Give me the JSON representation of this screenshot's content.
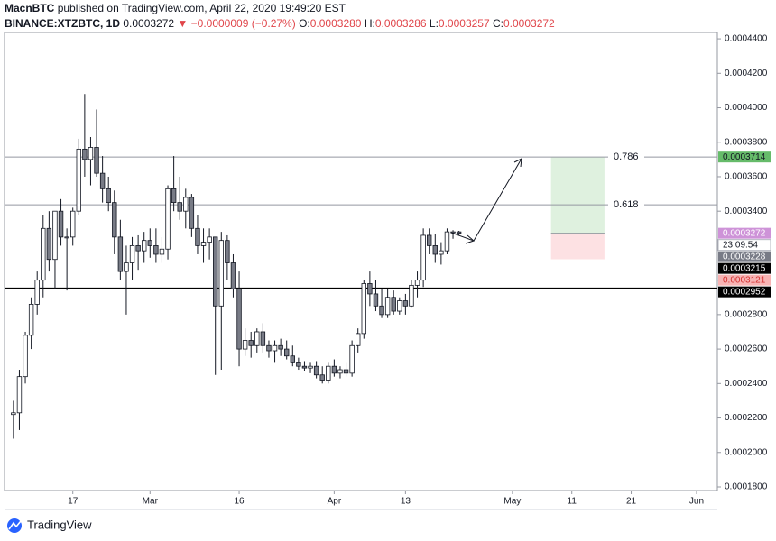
{
  "header": {
    "author": "MacnBTC",
    "published": "published on TradingView.com, April 22, 2020 19:49:20 EST",
    "symbol": "BINANCE:XTZBTC, 1D",
    "last": "0.0003272",
    "change": "▼ −0.0000009 (−0.27%)",
    "o_label": "O:",
    "o": "0.0003280",
    "h_label": "H:",
    "h": "0.0003286",
    "l_label": "L:",
    "l": "0.0003257",
    "c_label": "C:",
    "c": "0.0003272"
  },
  "footer": {
    "brand": "TradingView"
  },
  "chart_data": {
    "type": "candlestick",
    "x": [
      "2020-02-07",
      "2020-02-08",
      "2020-02-09",
      "2020-02-10",
      "2020-02-11",
      "2020-02-12",
      "2020-02-13",
      "2020-02-14",
      "2020-02-15",
      "2020-02-16",
      "2020-02-17",
      "2020-02-18",
      "2020-02-19",
      "2020-02-20",
      "2020-02-21",
      "2020-02-22",
      "2020-02-23",
      "2020-02-24",
      "2020-02-25",
      "2020-02-26",
      "2020-02-27",
      "2020-02-28",
      "2020-02-29",
      "2020-03-01",
      "2020-03-02",
      "2020-03-03",
      "2020-03-04",
      "2020-03-05",
      "2020-03-06",
      "2020-03-07",
      "2020-03-08",
      "2020-03-09",
      "2020-03-10",
      "2020-03-11",
      "2020-03-12",
      "2020-03-13",
      "2020-03-14",
      "2020-03-15",
      "2020-03-16",
      "2020-03-17",
      "2020-03-18",
      "2020-03-19",
      "2020-03-20",
      "2020-03-21",
      "2020-03-22",
      "2020-03-23",
      "2020-03-24",
      "2020-03-25",
      "2020-03-26",
      "2020-03-27",
      "2020-03-28",
      "2020-03-29",
      "2020-03-30",
      "2020-03-31",
      "2020-04-01",
      "2020-04-02",
      "2020-04-03",
      "2020-04-04",
      "2020-04-05",
      "2020-04-06",
      "2020-04-07",
      "2020-04-08",
      "2020-04-09",
      "2020-04-10",
      "2020-04-11",
      "2020-04-12",
      "2020-04-13",
      "2020-04-14",
      "2020-04-15",
      "2020-04-16",
      "2020-04-17",
      "2020-04-18",
      "2020-04-19",
      "2020-04-20",
      "2020-04-21",
      "2020-04-22"
    ],
    "open": [
      0.000222,
      0.000223,
      0.000244,
      0.000268,
      0.000286,
      0.0003,
      0.00033,
      0.000312,
      0.00034,
      0.000325,
      0.000325,
      0.00034,
      0.000376,
      0.00037,
      0.000377,
      0.000362,
      0.000353,
      0.000345,
      0.000325,
      0.000305,
      0.00031,
      0.00032,
      0.000317,
      0.000323,
      0.00032,
      0.000315,
      0.000318,
      0.000353,
      0.000345,
      0.00034,
      0.000348,
      0.00033,
      0.00032,
      0.000322,
      0.000325,
      0.000285,
      0.000323,
      0.00031,
      0.000295,
      0.00026,
      0.000265,
      0.000262,
      0.00027,
      0.000262,
      0.000259,
      0.000262,
      0.00026,
      0.000256,
      0.000252,
      0.00025,
      0.000249,
      0.00025,
      0.000245,
      0.000242,
      0.00025,
      0.000246,
      0.000248,
      0.000246,
      0.000262,
      0.000269,
      0.000298,
      0.000292,
      0.000285,
      0.00028,
      0.00029,
      0.000282,
      0.000288,
      0.000285,
      0.000297,
      0.0003,
      0.000326,
      0.00032,
      0.000315,
      0.000317,
      0.000328,
      0.000328
    ],
    "high": [
      0.00023,
      0.000248,
      0.00027,
      0.00029,
      0.000305,
      0.000338,
      0.00034,
      0.00034,
      0.000347,
      0.00033,
      0.000342,
      0.000382,
      0.000408,
      0.000383,
      0.000399,
      0.000372,
      0.00036,
      0.000352,
      0.000335,
      0.00032,
      0.000325,
      0.000326,
      0.000328,
      0.00033,
      0.00033,
      0.000325,
      0.000355,
      0.000372,
      0.00036,
      0.000353,
      0.00035,
      0.000338,
      0.00033,
      0.00033,
      0.000325,
      0.000328,
      0.000326,
      0.000315,
      0.000305,
      0.000272,
      0.00027,
      0.000272,
      0.000275,
      0.000265,
      0.000265,
      0.000266,
      0.000265,
      0.000262,
      0.000255,
      0.000253,
      0.000252,
      0.000253,
      0.00025,
      0.000252,
      0.000254,
      0.00025,
      0.000252,
      0.000265,
      0.000272,
      0.0003,
      0.000305,
      0.0003,
      0.000295,
      0.000295,
      0.000294,
      0.00029,
      0.000292,
      0.0003,
      0.000305,
      0.00033,
      0.00033,
      0.000327,
      0.000322,
      0.00033,
      0.000329,
      0.0003286
    ],
    "low": [
      0.000208,
      0.000213,
      0.00024,
      0.00026,
      0.00028,
      0.00029,
      0.000305,
      0.000295,
      0.00032,
      0.000294,
      0.00032,
      0.000338,
      0.00036,
      0.000355,
      0.00036,
      0.000345,
      0.00034,
      0.000315,
      0.0003,
      0.00028,
      0.0003,
      0.000306,
      0.00031,
      0.000313,
      0.00031,
      0.00031,
      0.000312,
      0.00034,
      0.000335,
      0.00033,
      0.000325,
      0.000315,
      0.00031,
      0.000312,
      0.000245,
      0.000248,
      0.0003,
      0.00029,
      0.00025,
      0.000256,
      0.000255,
      0.000258,
      0.000258,
      0.000255,
      0.000252,
      0.000256,
      0.000254,
      0.00025,
      0.000248,
      0.000247,
      0.000246,
      0.000243,
      0.00024,
      0.00024,
      0.000244,
      0.000243,
      0.000244,
      0.000244,
      0.000258,
      0.000266,
      0.000285,
      0.000282,
      0.000278,
      0.000278,
      0.00028,
      0.00028,
      0.00028,
      0.000284,
      0.00029,
      0.000296,
      0.000315,
      0.00031,
      0.000309,
      0.000315,
      0.000324,
      0.0003257
    ],
    "close": [
      0.000223,
      0.000244,
      0.000268,
      0.000286,
      0.0003,
      0.00033,
      0.000312,
      0.00034,
      0.000325,
      0.000325,
      0.00034,
      0.000376,
      0.00037,
      0.000377,
      0.000362,
      0.000353,
      0.000345,
      0.000325,
      0.000305,
      0.00031,
      0.00032,
      0.000317,
      0.000323,
      0.00032,
      0.000315,
      0.000318,
      0.000353,
      0.000345,
      0.00034,
      0.000348,
      0.00033,
      0.00032,
      0.000322,
      0.000325,
      0.000285,
      0.000323,
      0.00031,
      0.000295,
      0.00026,
      0.000265,
      0.000262,
      0.00027,
      0.000262,
      0.000259,
      0.000262,
      0.00026,
      0.000256,
      0.000252,
      0.00025,
      0.000249,
      0.00025,
      0.000245,
      0.000242,
      0.00025,
      0.000246,
      0.000248,
      0.000246,
      0.000262,
      0.000269,
      0.000298,
      0.000292,
      0.000285,
      0.00028,
      0.00029,
      0.000282,
      0.000288,
      0.000285,
      0.000297,
      0.0003,
      0.000326,
      0.00032,
      0.000315,
      0.000317,
      0.000328,
      0.000328,
      0.0003272
    ],
    "up_color": "#ffffff",
    "down_color": "#787b86",
    "edge_color": "#131722",
    "xlim": [
      "2020-02-06",
      "2020-06-05"
    ],
    "xticks": [
      {
        "value": "2020-02-17",
        "label": "17"
      },
      {
        "value": "2020-03-01",
        "label": "Mar"
      },
      {
        "value": "2020-03-16",
        "label": "16"
      },
      {
        "value": "2020-04-01",
        "label": "Apr"
      },
      {
        "value": "2020-04-13",
        "label": "13"
      },
      {
        "value": "2020-05-01",
        "label": "May"
      },
      {
        "value": "2020-05-11",
        "label": "11"
      },
      {
        "value": "2020-05-21",
        "label": "21"
      },
      {
        "value": "2020-06-01",
        "label": "Jun"
      }
    ],
    "ylim": [
      0.0001779,
      0.0004437
    ],
    "yticks": [
      {
        "value": 0.00018,
        "label": "0.0001800"
      },
      {
        "value": 0.0002,
        "label": "0.0002000"
      },
      {
        "value": 0.00022,
        "label": "0.0002200"
      },
      {
        "value": 0.00024,
        "label": "0.0002400"
      },
      {
        "value": 0.00026,
        "label": "0.0002600"
      },
      {
        "value": 0.00028,
        "label": "0.0002800"
      },
      {
        "value": 0.0003,
        "label": "0.0003000"
      },
      {
        "value": 0.00032,
        "label": "0.0003200"
      },
      {
        "value": 0.00034,
        "label": "0.0003400"
      },
      {
        "value": 0.00036,
        "label": "0.0003600"
      },
      {
        "value": 0.00038,
        "label": "0.0003800"
      },
      {
        "value": 0.0004,
        "label": "0.0004000"
      },
      {
        "value": 0.00042,
        "label": "0.0004200"
      },
      {
        "value": 0.00044,
        "label": "0.0004400"
      }
    ],
    "grid": false,
    "levels": [
      {
        "value": 0.0003714,
        "label": "0.786",
        "color": "#9598a1",
        "width": 1
      },
      {
        "value": 0.0003437,
        "label": "0.618",
        "color": "#9598a1",
        "width": 1
      },
      {
        "value": 0.0003215,
        "color": "#5d606b",
        "width": 1
      },
      {
        "value": 0.0002952,
        "color": "#000000",
        "width": 2
      }
    ],
    "position": {
      "start": "2020-05-08",
      "end": "2020-05-17",
      "entry": 0.0003272,
      "target": 0.0003714,
      "stop": 0.0003121,
      "profit_color": "rgba(76,175,80,0.18)",
      "loss_color": "rgba(242,54,69,0.15)"
    },
    "price_labels": [
      {
        "value": 0.0003714,
        "color": "#66bb6a",
        "text_color": "#131722"
      },
      {
        "value": 0.0003272,
        "color": "#ce93d8",
        "text_color": "#ffffff"
      },
      {
        "label": "23:09:54",
        "color": "#ffffff",
        "text_color": "#131722"
      },
      {
        "value": 0.0003228,
        "color": "#787b86",
        "text_color": "#ffffff"
      },
      {
        "value": 0.0003215,
        "color": "#000000",
        "text_color": "#ffffff"
      },
      {
        "value": 0.0003121,
        "color": "#f8b4b4",
        "text_color": "#d32f2f"
      },
      {
        "value": 0.0002952,
        "color": "#000000",
        "text_color": "#ffffff"
      }
    ]
  }
}
